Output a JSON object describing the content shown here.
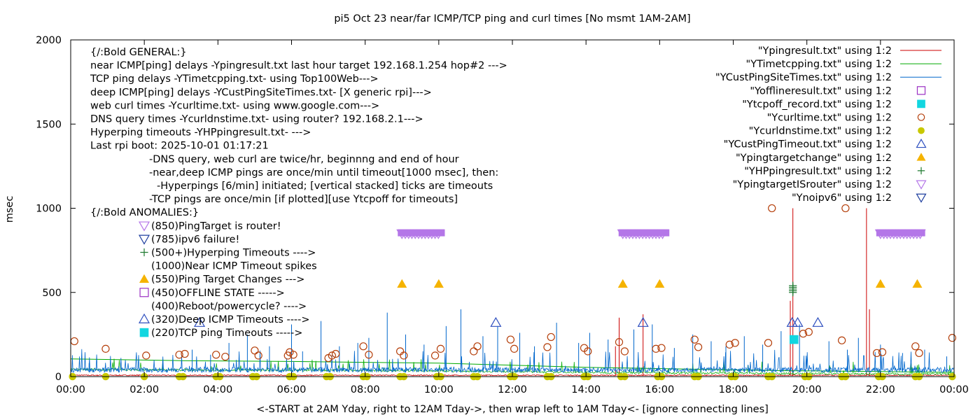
{
  "chart_data": {
    "type": "line",
    "title": "pi5 Oct 23  near/far ICMP/TCP ping and curl times [No msmt 1AM-2AM]",
    "xlabel": "<-START at 2AM Yday, right to 12AM Tday->, then wrap left to 1AM Tday<- [ignore connecting lines]",
    "ylabel": "msec",
    "xlim": [
      0,
      24
    ],
    "ylim": [
      0,
      2000
    ],
    "x_ticks": [
      "00:00",
      "02:00",
      "04:00",
      "06:00",
      "08:00",
      "10:00",
      "12:00",
      "14:00",
      "16:00",
      "18:00",
      "20:00",
      "22:00",
      "00:00"
    ],
    "y_ticks": [
      "0",
      "500",
      "1000",
      "1500",
      "2000"
    ],
    "grid": false,
    "legend_position": "top-right",
    "annotations": [
      "{/:Bold GENERAL:}",
      "near ICMP[ping] delays -Ypingresult.txt last hour target 192.168.1.254 hop#2 --->",
      "TCP ping delays -YTimetcpping.txt- using Top100Web--->",
      "deep ICMP[ping] delays -YCustPingSiteTimes.txt- [X generic rpi]--->",
      "web curl times -Ycurltime.txt- using www.google.com--->",
      "DNS query times -Ycurldnstime.txt- using router? 192.168.2.1--->",
      "Hyperping timeouts -YHPpingresult.txt- --->",
      "Last rpi boot: 2025-10-01 01:17:21",
      "-DNS query, web curl are twice/hr, beginnng and end of hour",
      "-near,deep ICMP pings are once/min until timeout[1000 msec], then:",
      "-Hyperpings [6/min] initiated; [vertical stacked] ticks are timeouts",
      "-TCP pings are once/min [if plotted][use Ytcpoff for timeouts]",
      "{/:Bold ANOMALIES:}"
    ],
    "anomaly_key": [
      {
        "label": "(850)PingTarget is router!",
        "marker": "triangle-down",
        "color": "#b476e8"
      },
      {
        "label": "(785)ipv6 failure!",
        "marker": "triangle-down-open",
        "color": "#1f3f9f"
      },
      {
        "label": "(500+)Hyperping Timeouts ---->",
        "marker": "plus",
        "color": "#1f7a30"
      },
      {
        "label": "(1000)Near ICMP Timeout spikes",
        "marker": "none",
        "color": "#cc0000"
      },
      {
        "label": "(550)Ping Target Changes --->",
        "marker": "triangle-up-filled",
        "color": "#f5b300"
      },
      {
        "label": "(450)OFFLINE STATE ----->",
        "marker": "square-open",
        "color": "#9b30c4"
      },
      {
        "label": "(400)Reboot/powercycle? ---->",
        "marker": "none",
        "color": "#000000"
      },
      {
        "label": "(320)Deep ICMP Timeouts ---->",
        "marker": "triangle-up-open",
        "color": "#2e4fbf"
      },
      {
        "label": "(220)TCP ping Timeouts ----->",
        "marker": "square-filled",
        "color": "#12d6e0"
      }
    ],
    "series": [
      {
        "name": "\"Ypingresult.txt\" using 1:2",
        "style": "line",
        "color": "#cc0000",
        "baseline": 5,
        "spikes": [
          [
            14.8,
            180
          ],
          [
            14.9,
            350
          ],
          [
            15.55,
            370
          ],
          [
            19.55,
            450
          ],
          [
            19.62,
            1000
          ],
          [
            21.62,
            1000
          ],
          [
            21.7,
            400
          ]
        ]
      },
      {
        "name": "\"YTimetcpping.txt\" using 1:2",
        "style": "line",
        "color": "#00aa00",
        "segments": [
          [
            0,
            105
          ],
          [
            3,
            95
          ],
          [
            6,
            90
          ],
          [
            10,
            80
          ],
          [
            14,
            55
          ],
          [
            18,
            40
          ],
          [
            19.5,
            35
          ],
          [
            22,
            30
          ],
          [
            24,
            25
          ]
        ]
      },
      {
        "name": "\"YCustPingSiteTimes.txt\" using 1:2",
        "style": "line",
        "color": "#0066cc",
        "baseline": 25,
        "spikes": [
          [
            0.5,
            80
          ],
          [
            1.3,
            60
          ],
          [
            2.5,
            90
          ],
          [
            3.3,
            160
          ],
          [
            3.8,
            130
          ],
          [
            4.3,
            200
          ],
          [
            4.8,
            250
          ],
          [
            5.4,
            180
          ],
          [
            6.0,
            310
          ],
          [
            6.3,
            150
          ],
          [
            6.8,
            330
          ],
          [
            7.3,
            180
          ],
          [
            7.8,
            200
          ],
          [
            8.1,
            230
          ],
          [
            8.6,
            380
          ],
          [
            9.1,
            250
          ],
          [
            9.6,
            190
          ],
          [
            10.2,
            300
          ],
          [
            10.6,
            400
          ],
          [
            11.2,
            240
          ],
          [
            11.6,
            300
          ],
          [
            12.2,
            260
          ],
          [
            12.6,
            180
          ],
          [
            13.2,
            320
          ],
          [
            13.8,
            200
          ],
          [
            14.1,
            260
          ],
          [
            14.6,
            220
          ],
          [
            15.3,
            280
          ],
          [
            15.8,
            310
          ],
          [
            16.4,
            170
          ],
          [
            16.9,
            250
          ],
          [
            17.4,
            210
          ],
          [
            17.8,
            180
          ],
          [
            18.3,
            240
          ],
          [
            18.8,
            190
          ],
          [
            19.3,
            270
          ],
          [
            19.8,
            310
          ],
          [
            20.6,
            210
          ],
          [
            21.1,
            160
          ],
          [
            21.4,
            230
          ],
          [
            22.0,
            190
          ],
          [
            22.6,
            140
          ],
          [
            23.2,
            160
          ],
          [
            23.8,
            120
          ]
        ]
      },
      {
        "name": "\"Yofflineresult.txt\" using 1:2",
        "style": "points",
        "marker": "square-open",
        "color": "#9b30c4",
        "points": []
      },
      {
        "name": "\"Ytcpoff_record.txt\" using 1:2",
        "style": "points",
        "marker": "square-filled",
        "color": "#12d6e0",
        "points": [
          [
            19.65,
            220
          ]
        ]
      },
      {
        "name": "\"Ycurltime.txt\" using 1:2",
        "style": "points",
        "marker": "circle-open",
        "color": "#b5400c",
        "points": [
          [
            0.1,
            210
          ],
          [
            0.95,
            165
          ],
          [
            2.05,
            125
          ],
          [
            2.95,
            130
          ],
          [
            3.1,
            135
          ],
          [
            3.95,
            130
          ],
          [
            4.2,
            118
          ],
          [
            5.0,
            155
          ],
          [
            5.1,
            125
          ],
          [
            5.9,
            125
          ],
          [
            5.95,
            145
          ],
          [
            6.05,
            130
          ],
          [
            7.0,
            110
          ],
          [
            7.1,
            125
          ],
          [
            7.2,
            135
          ],
          [
            7.95,
            180
          ],
          [
            8.1,
            130
          ],
          [
            8.95,
            150
          ],
          [
            9.05,
            125
          ],
          [
            9.9,
            125
          ],
          [
            10.05,
            165
          ],
          [
            10.95,
            150
          ],
          [
            11.05,
            180
          ],
          [
            11.95,
            220
          ],
          [
            12.05,
            165
          ],
          [
            12.95,
            175
          ],
          [
            13.05,
            235
          ],
          [
            13.95,
            170
          ],
          [
            14.05,
            150
          ],
          [
            14.9,
            205
          ],
          [
            15.05,
            150
          ],
          [
            15.9,
            165
          ],
          [
            16.05,
            170
          ],
          [
            16.95,
            220
          ],
          [
            17.05,
            175
          ],
          [
            17.9,
            190
          ],
          [
            18.05,
            200
          ],
          [
            18.95,
            200
          ],
          [
            19.05,
            1000
          ],
          [
            19.9,
            255
          ],
          [
            20.05,
            265
          ],
          [
            20.95,
            215
          ],
          [
            21.05,
            1000
          ],
          [
            21.9,
            140
          ],
          [
            22.05,
            145
          ],
          [
            22.95,
            180
          ],
          [
            23.05,
            140
          ],
          [
            23.95,
            230
          ]
        ]
      },
      {
        "name": "\"Ycurldnstime.txt\" using 1:2",
        "style": "points",
        "marker": "circle-filled",
        "color": "#c8c800",
        "points": [
          [
            0.05,
            0
          ],
          [
            0.95,
            0
          ],
          [
            2.0,
            0
          ],
          [
            2.95,
            0
          ],
          [
            3.05,
            0
          ],
          [
            3.95,
            0
          ],
          [
            4.05,
            0
          ],
          [
            4.95,
            0
          ],
          [
            5.05,
            0
          ],
          [
            5.95,
            0
          ],
          [
            6.05,
            0
          ],
          [
            6.95,
            0
          ],
          [
            7.05,
            0
          ],
          [
            7.95,
            0
          ],
          [
            8.05,
            0
          ],
          [
            8.95,
            0
          ],
          [
            9.05,
            0
          ],
          [
            9.95,
            0
          ],
          [
            10.05,
            0
          ],
          [
            10.95,
            0
          ],
          [
            11.05,
            0
          ],
          [
            11.95,
            0
          ],
          [
            12.05,
            0
          ],
          [
            12.95,
            0
          ],
          [
            13.05,
            0
          ],
          [
            13.95,
            0
          ],
          [
            14.05,
            0
          ],
          [
            14.95,
            0
          ],
          [
            15.05,
            0
          ],
          [
            15.95,
            0
          ],
          [
            16.05,
            0
          ],
          [
            16.95,
            0
          ],
          [
            17.05,
            0
          ],
          [
            17.95,
            0
          ],
          [
            18.05,
            0
          ],
          [
            18.95,
            0
          ],
          [
            19.05,
            0
          ],
          [
            19.95,
            0
          ],
          [
            20.05,
            0
          ],
          [
            20.95,
            0
          ],
          [
            21.05,
            0
          ],
          [
            21.95,
            0
          ],
          [
            22.05,
            0
          ],
          [
            22.95,
            0
          ],
          [
            23.05,
            0
          ],
          [
            23.95,
            0
          ]
        ]
      },
      {
        "name": "\"YCustPingTimeout.txt\" using 1:2",
        "style": "points",
        "marker": "triangle-up-open",
        "color": "#2e4fbf",
        "points": [
          [
            3.5,
            320
          ],
          [
            11.55,
            320
          ],
          [
            15.55,
            320
          ],
          [
            19.6,
            320
          ],
          [
            19.75,
            320
          ],
          [
            20.3,
            320
          ]
        ]
      },
      {
        "name": "\"Ypingtargetchange\" using 1:2",
        "style": "points",
        "marker": "triangle-up-filled",
        "color": "#f5b300",
        "points": [
          [
            9.0,
            550
          ],
          [
            10.0,
            550
          ],
          [
            15.0,
            550
          ],
          [
            16.0,
            550
          ],
          [
            22.0,
            550
          ],
          [
            23.0,
            550
          ]
        ]
      },
      {
        "name": "\"YHPpingresult.txt\" using 1:2",
        "style": "points",
        "marker": "plus",
        "color": "#1f7a30",
        "points": [
          [
            19.62,
            500
          ],
          [
            19.62,
            510
          ],
          [
            19.62,
            520
          ],
          [
            19.62,
            530
          ],
          [
            19.62,
            540
          ]
        ]
      },
      {
        "name": "\"YpingtargetISrouter\" using 1:2",
        "style": "bands",
        "marker": "triangle-down",
        "color": "#b476e8",
        "ranges": [
          [
            9.0,
            10.05,
            850
          ],
          [
            15.0,
            16.15,
            850
          ],
          [
            22.0,
            23.1,
            850
          ]
        ]
      },
      {
        "name": "\"Ynoipv6\" using 1:2",
        "style": "points",
        "marker": "triangle-down-open",
        "color": "#1f3f9f",
        "points": []
      }
    ]
  }
}
